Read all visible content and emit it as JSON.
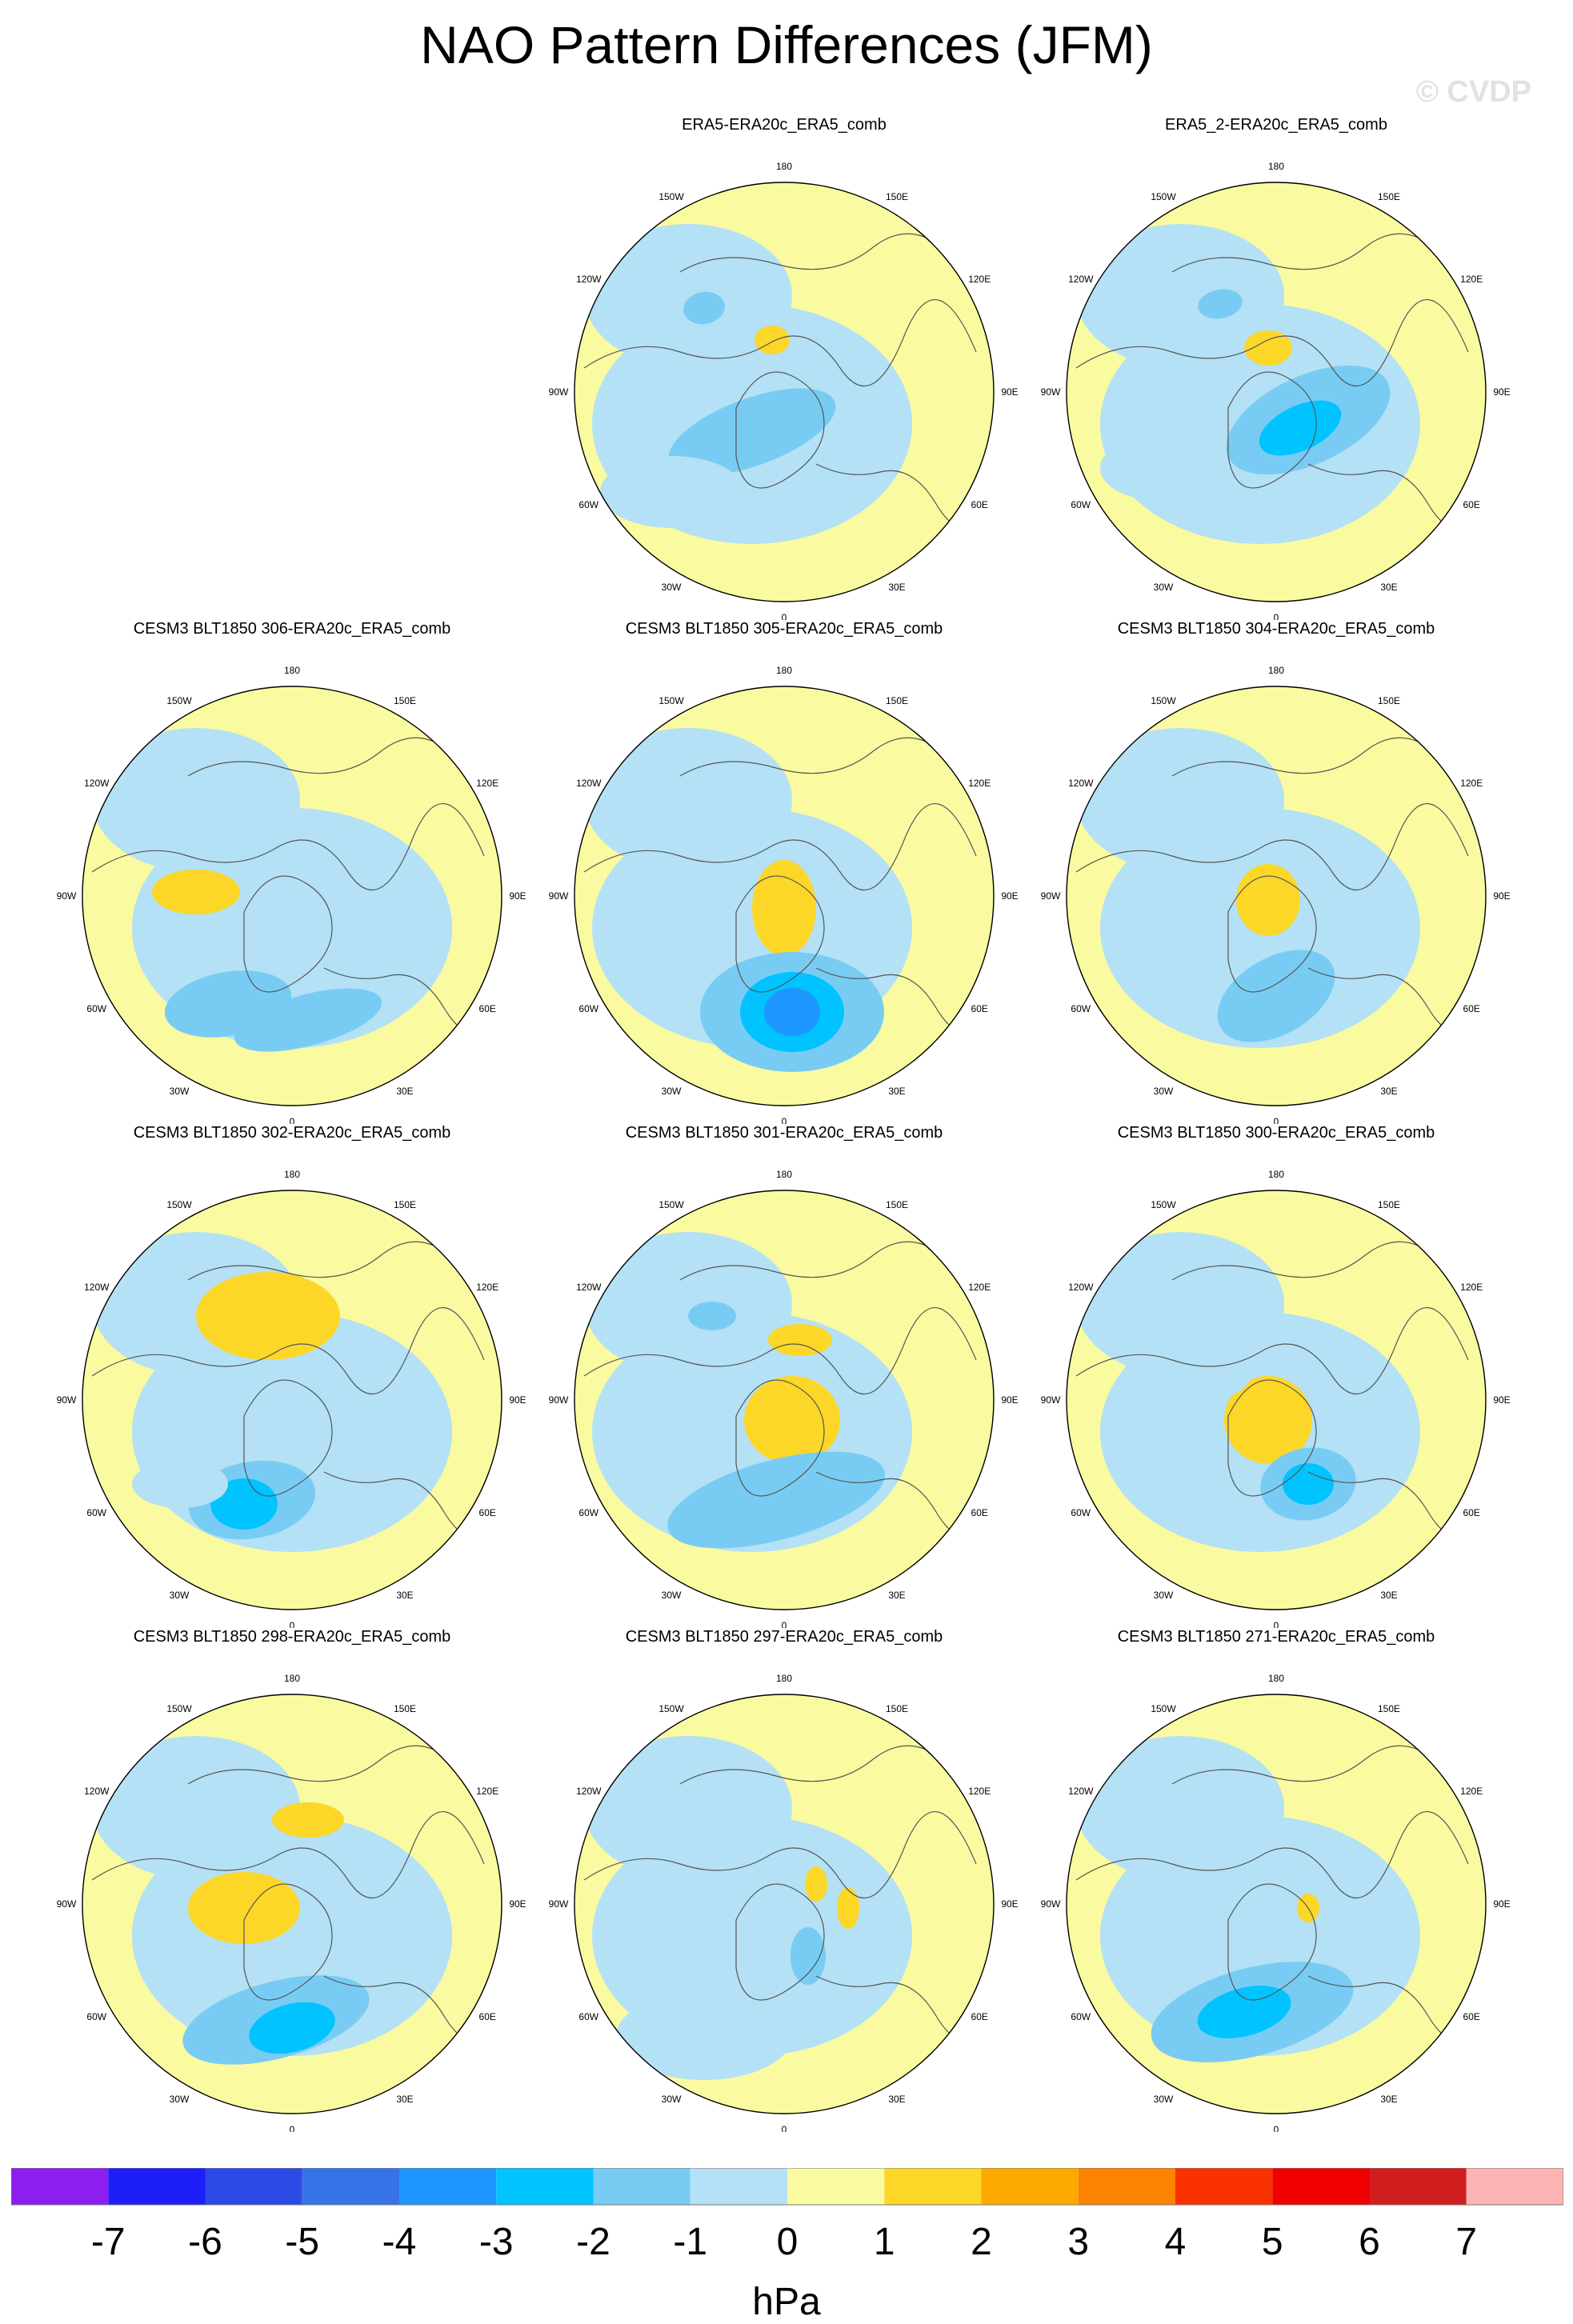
{
  "title": "NAO Pattern Differences (JFM)",
  "watermark": "© CVDP",
  "colorbar": {
    "unit": "hPa",
    "tick_labels": [
      "-7",
      "-6",
      "-5",
      "-4",
      "-3",
      "-2",
      "-1",
      "0",
      "1",
      "2",
      "3",
      "4",
      "5",
      "6",
      "7"
    ],
    "colors": [
      "#8c1ef0",
      "#1e1efa",
      "#2c4be6",
      "#3773e8",
      "#1e96ff",
      "#00c3ff",
      "#78ccf4",
      "#b4e1f5",
      "#fafaa0",
      "#fcd728",
      "#fcaa00",
      "#fc8200",
      "#fa3200",
      "#f00000",
      "#d21e1e",
      "#fcb4b4"
    ]
  },
  "map_labels": {
    "lon_180": "180",
    "lon_150w": "150W",
    "lon_150e": "150E",
    "lon_120w": "120W",
    "lon_120e": "120E",
    "lon_90w": "90W",
    "lon_90e": "90E",
    "lon_60w": "60W",
    "lon_60e": "60E",
    "lon_30w": "30W",
    "lon_30e": "30E",
    "lon_0": "0"
  },
  "panels": [
    {
      "title": "ERA5-ERA20c_ERA5_comb"
    },
    {
      "title": "ERA5_2-ERA20c_ERA5_comb"
    },
    {
      "title": "CESM3 BLT1850 306-ERA20c_ERA5_comb"
    },
    {
      "title": "CESM3 BLT1850 305-ERA20c_ERA5_comb"
    },
    {
      "title": "CESM3 BLT1850 304-ERA20c_ERA5_comb"
    },
    {
      "title": "CESM3 BLT1850 302-ERA20c_ERA5_comb"
    },
    {
      "title": "CESM3 BLT1850 301-ERA20c_ERA5_comb"
    },
    {
      "title": "CESM3 BLT1850 300-ERA20c_ERA5_comb"
    },
    {
      "title": "CESM3 BLT1850 298-ERA20c_ERA5_comb"
    },
    {
      "title": "CESM3 BLT1850 297-ERA20c_ERA5_comb"
    },
    {
      "title": "CESM3 BLT1850 271-ERA20c_ERA5_comb"
    }
  ]
}
